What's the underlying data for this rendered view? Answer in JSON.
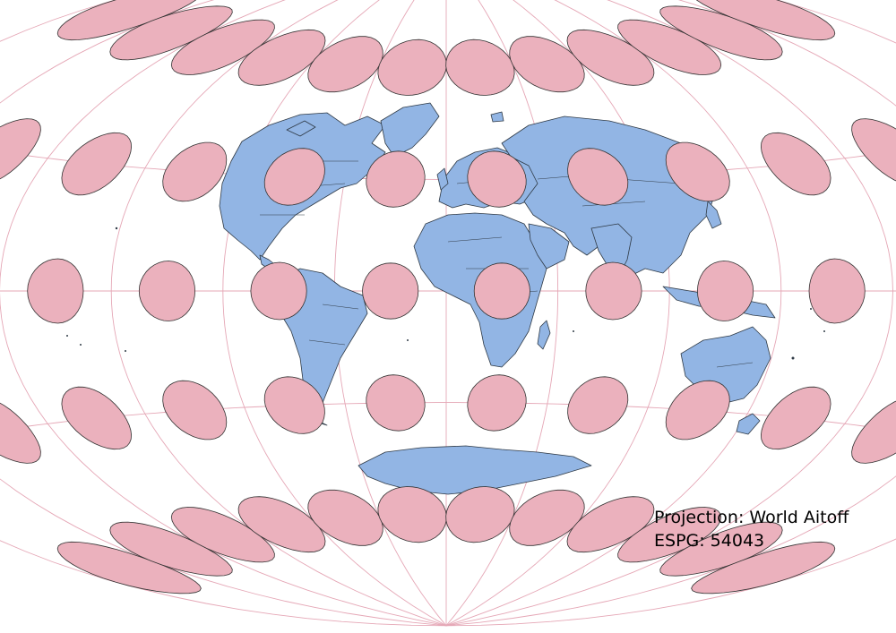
{
  "map": {
    "projection_label": "Projection: World Aitoff",
    "epsg_label": "ESPG: 54043",
    "colors": {
      "land": "#92b5e4",
      "coastline": "#2f3a46",
      "graticule": "#e5a7b6",
      "tissot_fill": "#ebb1bd",
      "tissot_stroke": "#333333"
    },
    "graticule": {
      "meridians_deg": [
        -180,
        -150,
        -120,
        -90,
        -60,
        -30,
        0,
        30,
        60,
        90,
        120,
        150,
        180
      ],
      "parallels_deg": [
        -90,
        -60,
        -30,
        0,
        30,
        60,
        90
      ]
    },
    "tissot_indicatrix": {
      "longitudes_deg": [
        -165,
        -135,
        -105,
        -75,
        -45,
        -15,
        15,
        45,
        75,
        105,
        135,
        165
      ],
      "latitudes_deg": [
        -60,
        -30,
        0,
        30,
        60
      ]
    }
  }
}
